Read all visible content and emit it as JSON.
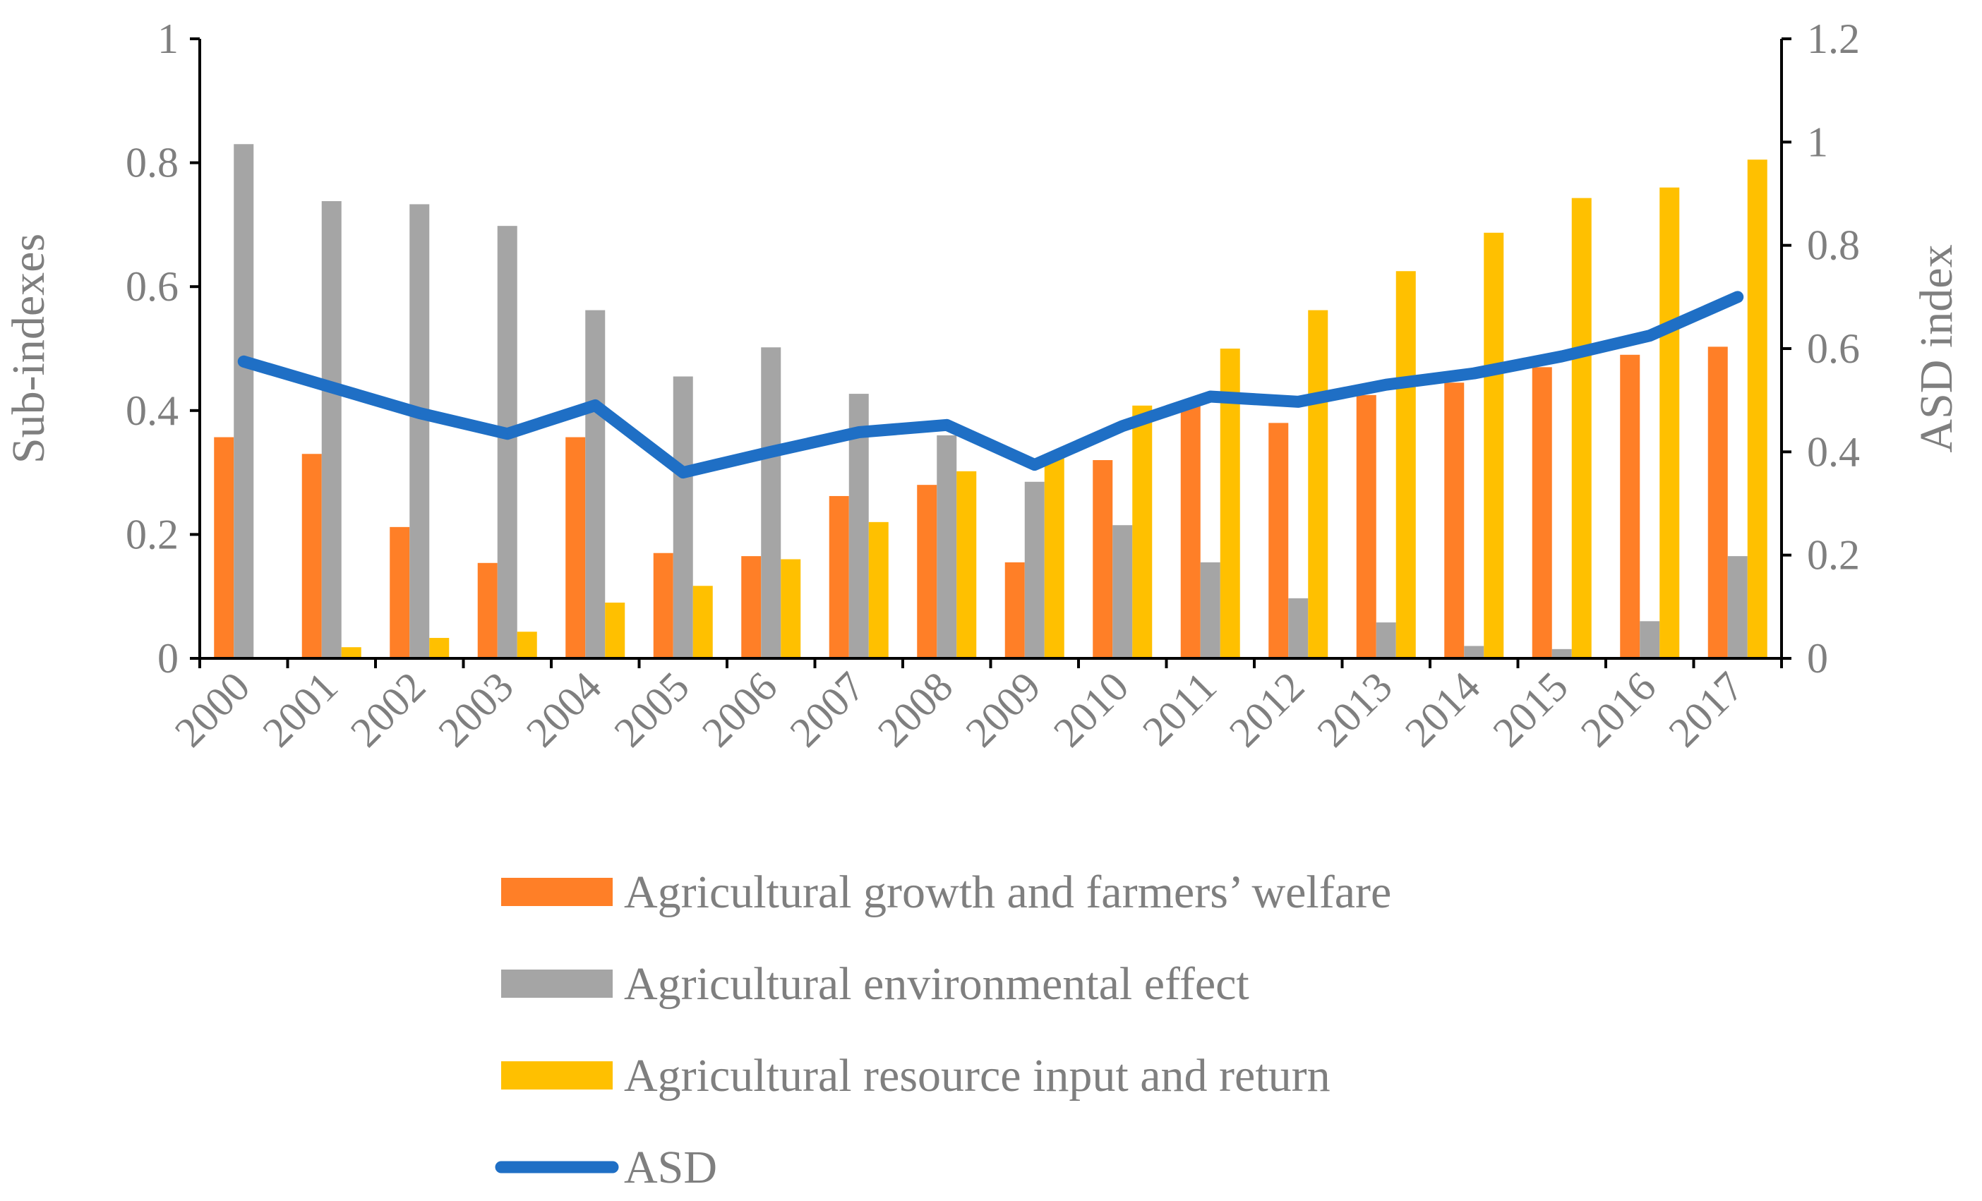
{
  "chart_data": {
    "type": "bar",
    "title": "",
    "categories": [
      "2000",
      "2001",
      "2002",
      "2003",
      "2004",
      "2005",
      "2006",
      "2007",
      "2008",
      "2009",
      "2010",
      "2011",
      "2012",
      "2013",
      "2014",
      "2015",
      "2016",
      "2017"
    ],
    "series": [
      {
        "name": "Agricultural growth and farmers’ welfare",
        "type": "bar",
        "axis": "left",
        "color": "#ff7f27",
        "values": [
          0.357,
          0.33,
          0.212,
          0.154,
          0.357,
          0.17,
          0.165,
          0.262,
          0.28,
          0.155,
          0.32,
          0.407,
          0.38,
          0.425,
          0.445,
          0.47,
          0.49,
          0.503
        ]
      },
      {
        "name": "Agricultural environmental effect",
        "type": "bar",
        "axis": "left",
        "color": "#a5a5a5",
        "values": [
          0.83,
          0.738,
          0.733,
          0.698,
          0.562,
          0.455,
          0.502,
          0.427,
          0.36,
          0.285,
          0.215,
          0.155,
          0.097,
          0.058,
          0.02,
          0.015,
          0.06,
          0.165
        ]
      },
      {
        "name": "Agricultural resource input and return",
        "type": "bar",
        "axis": "left",
        "color": "#ffc000",
        "values": [
          0.0,
          0.018,
          0.033,
          0.043,
          0.09,
          0.117,
          0.16,
          0.22,
          0.302,
          0.33,
          0.408,
          0.5,
          0.562,
          0.625,
          0.687,
          0.743,
          0.76,
          0.805
        ]
      },
      {
        "name": "ASD",
        "type": "line",
        "axis": "right",
        "color": "#1f6fc5",
        "values": [
          0.575,
          0.525,
          0.475,
          0.435,
          0.49,
          0.36,
          0.4,
          0.438,
          0.452,
          0.375,
          0.45,
          0.507,
          0.497,
          0.53,
          0.552,
          0.585,
          0.625,
          0.7
        ]
      }
    ],
    "ylabel": "Sub-indexes",
    "y2label": "ASD index",
    "xlabel": "",
    "ylim": [
      0,
      1
    ],
    "y2lim": [
      0,
      1.2
    ],
    "yticks": [
      "0",
      "0.2",
      "0.4",
      "0.6",
      "0.8",
      "1"
    ],
    "y2ticks": [
      "0",
      "0.2",
      "0.4",
      "0.6",
      "0.8",
      "1",
      "1.2"
    ],
    "grid": false,
    "legend_position": "bottom"
  }
}
